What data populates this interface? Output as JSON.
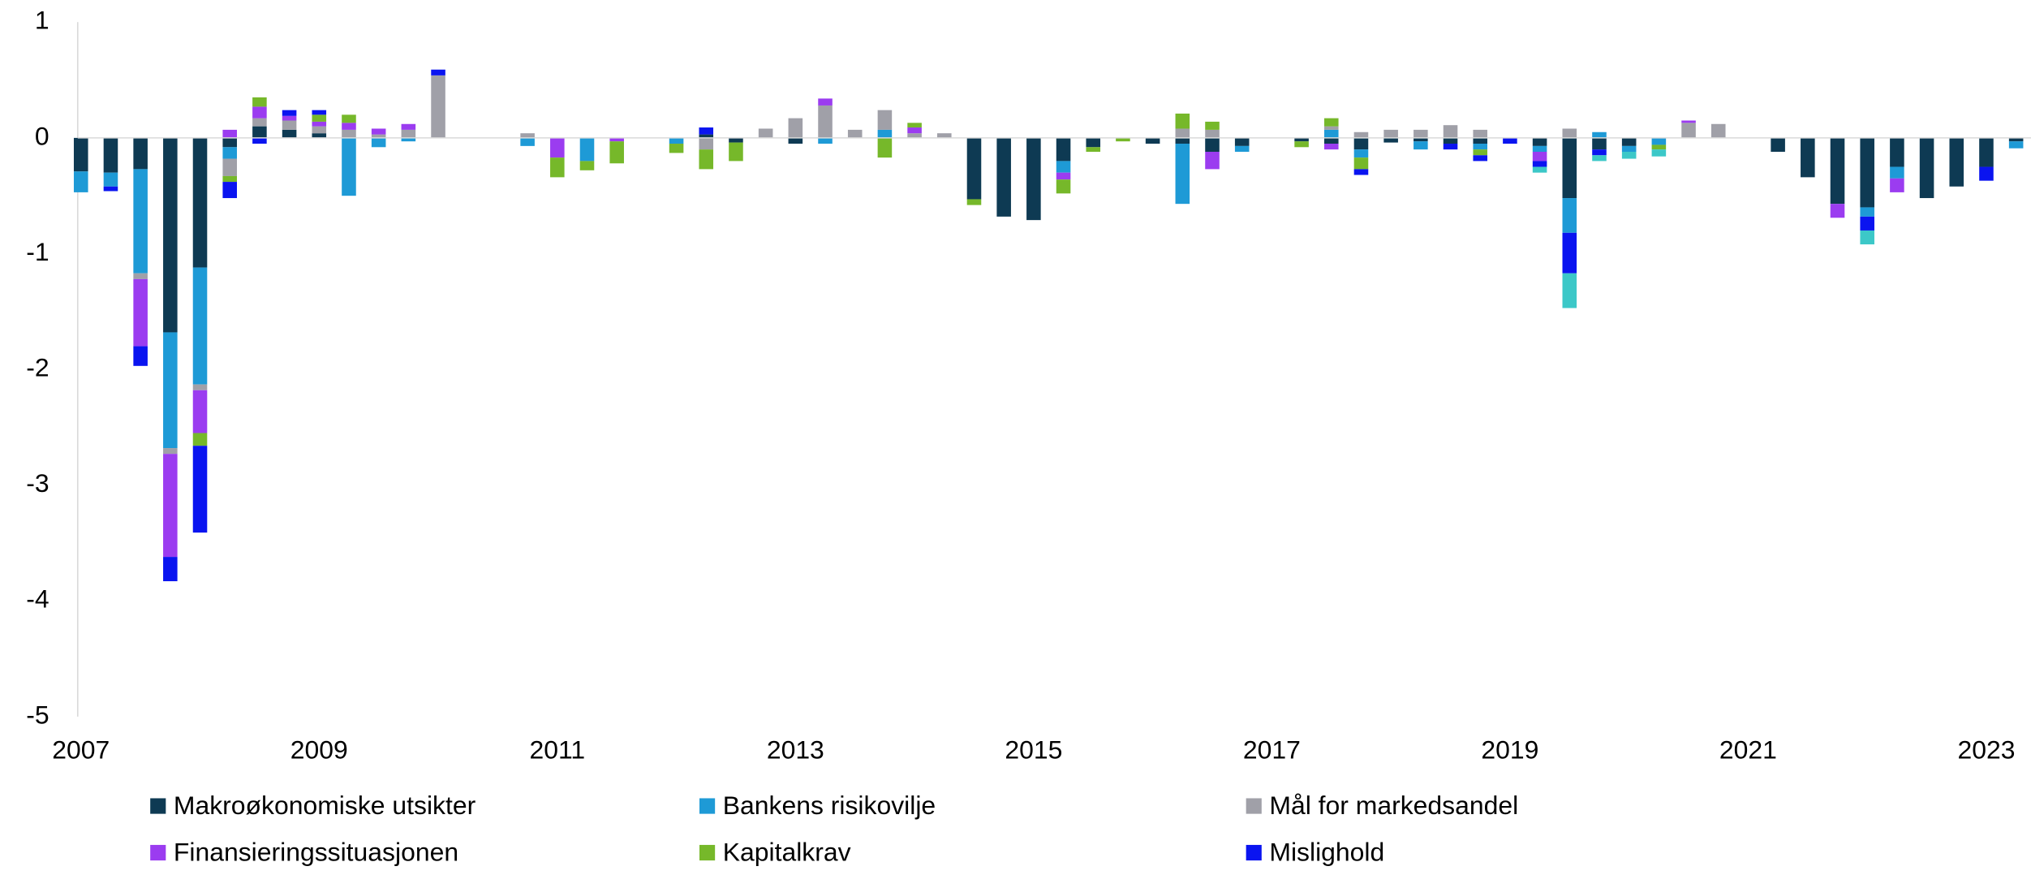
{
  "chart_data": {
    "type": "bar",
    "stacked": true,
    "categories": [
      "2007",
      null,
      null,
      null,
      null,
      null,
      null,
      null,
      "2009",
      null,
      null,
      null,
      null,
      null,
      null,
      null,
      "2011",
      null,
      null,
      null,
      null,
      null,
      null,
      null,
      "2013",
      null,
      null,
      null,
      null,
      null,
      null,
      null,
      "2015",
      null,
      null,
      null,
      null,
      null,
      null,
      null,
      "2017",
      null,
      null,
      null,
      null,
      null,
      null,
      null,
      "2019",
      null,
      null,
      null,
      null,
      null,
      null,
      null,
      "2021",
      null,
      null,
      null,
      null,
      null,
      null,
      null,
      "2023",
      null
    ],
    "series": [
      {
        "name": "Makroøkonomiske utsikter",
        "color": "#0e3a53",
        "values": [
          -0.29,
          -0.3,
          -0.27,
          -1.68,
          -1.12,
          -0.08,
          0.1,
          0.07,
          0.04,
          0,
          0,
          0,
          0,
          0,
          0,
          0,
          0,
          0,
          0,
          0,
          0,
          0.03,
          -0.04,
          0,
          -0.05,
          0,
          0,
          0,
          0,
          0,
          -0.53,
          -0.68,
          -0.71,
          -0.2,
          -0.08,
          0,
          -0.05,
          -0.05,
          -0.12,
          -0.07,
          0,
          -0.03,
          -0.05,
          -0.1,
          -0.04,
          -0.03,
          -0.05,
          -0.05,
          0,
          -0.07,
          -0.52,
          -0.1,
          -0.07,
          0,
          0,
          0,
          0,
          -0.12,
          -0.34,
          -0.57,
          -0.6,
          -0.25,
          -0.52,
          -0.42,
          -0.25,
          -0.03
        ]
      },
      {
        "name": "Bankens risikovilje",
        "color": "#1e9ad6",
        "values": [
          -0.18,
          -0.12,
          -0.9,
          -1.0,
          -1.01,
          -0.1,
          0,
          0,
          0,
          -0.5,
          -0.08,
          -0.03,
          0,
          0,
          0,
          -0.07,
          0,
          -0.2,
          0,
          0,
          -0.05,
          0,
          0,
          0,
          0,
          -0.05,
          0,
          0.07,
          0,
          0,
          0,
          0,
          0,
          -0.1,
          0,
          0,
          0,
          -0.52,
          0,
          -0.05,
          0,
          0,
          0.07,
          -0.07,
          0,
          -0.07,
          0,
          -0.05,
          0,
          -0.05,
          -0.3,
          0.05,
          -0.05,
          -0.06,
          0,
          0,
          0,
          0,
          0,
          0,
          -0.08,
          -0.1,
          0,
          0,
          0,
          -0.06
        ]
      },
      {
        "name": "Mål for markedsandel",
        "color": "#a0a0a8",
        "values": [
          0,
          0,
          -0.05,
          -0.05,
          -0.05,
          -0.15,
          0.07,
          0.08,
          0.06,
          0.07,
          0.03,
          0.07,
          0.54,
          0,
          0,
          0.04,
          0,
          0,
          0,
          0,
          0,
          -0.1,
          0,
          0.08,
          0.17,
          0.28,
          0.07,
          0.17,
          0.04,
          0.04,
          0,
          0,
          0,
          0,
          0,
          0,
          0,
          0.08,
          0.07,
          0,
          0,
          0,
          0.03,
          0.05,
          0.07,
          0.07,
          0.11,
          0.07,
          0,
          0,
          0.08,
          0,
          0,
          0,
          0.13,
          0.12,
          0,
          0,
          0,
          0,
          0,
          0,
          0,
          0,
          0,
          0
        ]
      },
      {
        "name": "Finansieringssituasjonen",
        "color": "#9b3cf0",
        "values": [
          0,
          0,
          -0.58,
          -0.89,
          -0.37,
          0.07,
          0.1,
          0.04,
          0.04,
          0.06,
          0.05,
          0.05,
          0,
          0,
          0,
          0,
          -0.17,
          0,
          -0.03,
          0,
          0,
          0,
          0,
          0,
          0,
          0.06,
          0,
          0,
          0.05,
          0,
          0,
          0,
          0,
          -0.06,
          0,
          0,
          0,
          0,
          -0.15,
          0,
          0,
          0,
          -0.05,
          0,
          0,
          0,
          0,
          0,
          0,
          -0.08,
          0,
          0,
          0,
          0,
          0.02,
          0,
          0,
          0,
          0,
          -0.12,
          0,
          -0.12,
          0,
          0,
          0,
          0
        ]
      },
      {
        "name": "Kapitalkrav",
        "color": "#76b82a",
        "values": [
          0,
          0,
          0,
          0,
          -0.11,
          -0.05,
          0.08,
          0,
          0.06,
          0.07,
          0,
          0,
          0,
          0,
          0,
          0,
          -0.17,
          -0.08,
          -0.19,
          0,
          -0.08,
          -0.17,
          -0.16,
          0,
          0,
          0,
          0,
          -0.17,
          0.04,
          0,
          -0.05,
          0,
          0,
          -0.12,
          -0.04,
          -0.03,
          0,
          0.13,
          0.07,
          0,
          0,
          -0.05,
          0.07,
          -0.1,
          0,
          0,
          0,
          -0.05,
          0,
          0,
          0,
          0,
          0,
          -0.04,
          0,
          0,
          0,
          0,
          0,
          0,
          0,
          0,
          0,
          0,
          0,
          0
        ]
      },
      {
        "name": "Mislighold",
        "color": "#0a14f0",
        "values": [
          0,
          -0.04,
          -0.17,
          -0.21,
          -0.75,
          -0.14,
          -0.05,
          0.05,
          0.04,
          0,
          0,
          0,
          0.05,
          0,
          0,
          0,
          0,
          0,
          0,
          0,
          0,
          0.06,
          0,
          0,
          0,
          0,
          0,
          0,
          0,
          0,
          0,
          0,
          0,
          0,
          0,
          0,
          0,
          0,
          0,
          0,
          0,
          0,
          0,
          -0.05,
          0,
          0,
          -0.05,
          -0.05,
          -0.05,
          -0.05,
          -0.35,
          -0.05,
          0,
          0,
          0,
          0,
          0,
          0,
          0,
          0,
          -0.12,
          0,
          0,
          0,
          -0.12,
          0
        ]
      },
      {
        "color": "#3cc8c8",
        "values": [
          0,
          0,
          0,
          0,
          0,
          0,
          0,
          0,
          0,
          0,
          0,
          0,
          0,
          0,
          0,
          0,
          0,
          0,
          0,
          0,
          0,
          0,
          0,
          0,
          0,
          0,
          0,
          0,
          0,
          0,
          0,
          0,
          0,
          0,
          0,
          0,
          0,
          0,
          0,
          0,
          0,
          0,
          0,
          0,
          0,
          0,
          0,
          0,
          0,
          -0.05,
          -0.3,
          -0.05,
          -0.06,
          -0.06,
          0,
          0,
          0,
          0,
          0,
          0,
          -0.12,
          0,
          0,
          0,
          0,
          0
        ]
      }
    ],
    "ylim": [
      -5,
      1
    ],
    "yticks": [
      -5,
      -4,
      -3,
      -2,
      -1,
      0,
      1
    ],
    "grid": false
  }
}
